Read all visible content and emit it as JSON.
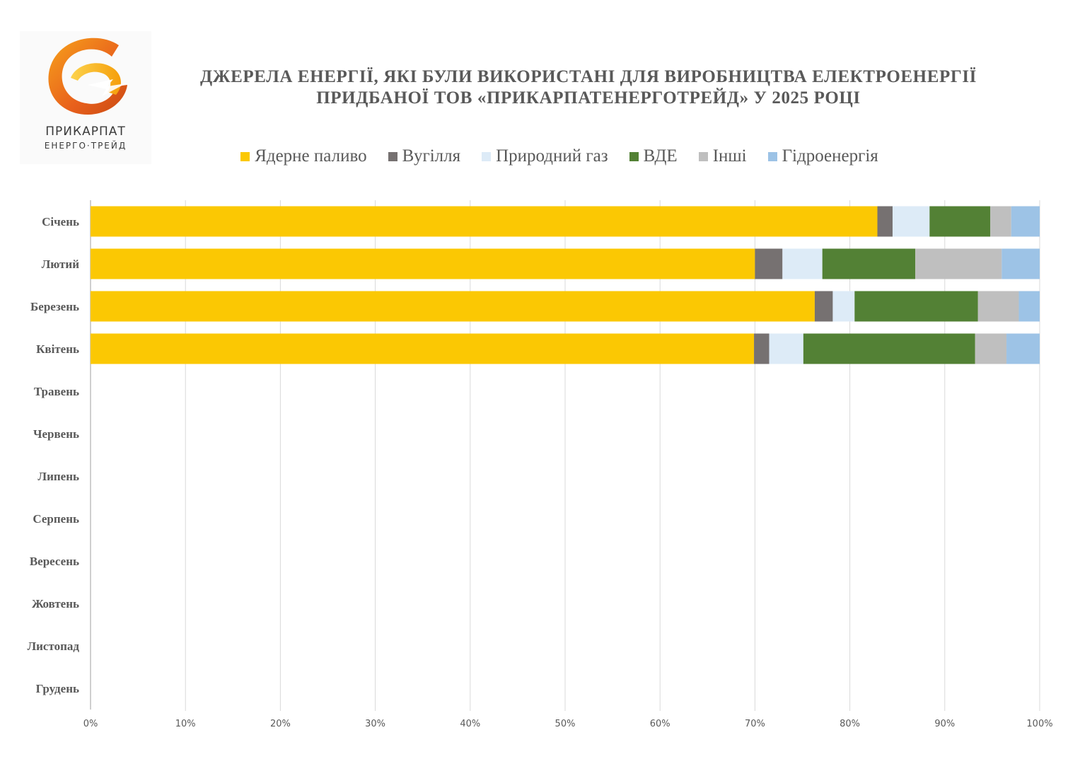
{
  "logo": {
    "line1": "ПРИКАРПАТ",
    "line2": "ЕНЕРГО·ТРЕЙД"
  },
  "chart_data": {
    "type": "bar",
    "orientation": "horizontal",
    "stacked": "percent",
    "title": "ДЖЕРЕЛА ЕНЕРГІЇ, ЯКІ БУЛИ ВИКОРИСТАНІ ДЛЯ ВИРОБНИЦТВА ЕЛЕКТРОЕНЕРГІЇ ПРИДБАНОЇ ТОВ «ПРИКАРПАТЕНЕРГОТРЕЙД» У 2025 РОЦІ",
    "title_lines": [
      "ДЖЕРЕЛА ЕНЕРГІЇ, ЯКІ БУЛИ ВИКОРИСТАНІ ДЛЯ ВИРОБНИЦТВА ЕЛЕКТРОЕНЕРГІЇ",
      "ПРИДБАНОЇ ТОВ «ПРИКАРПАТЕНЕРГОТРЕЙД» У 2025 РОЦІ"
    ],
    "categories": [
      "Січень",
      "Лютий",
      "Березень",
      "Квітень",
      "Травень",
      "Червень",
      "Липень",
      "Серпень",
      "Вересень",
      "Жовтень",
      "Листопад",
      "Грудень"
    ],
    "series": [
      {
        "name": "Ядерне паливо",
        "color": "#fbc803",
        "values": [
          82.9,
          70.0,
          76.3,
          69.9,
          null,
          null,
          null,
          null,
          null,
          null,
          null,
          null
        ]
      },
      {
        "name": "Вугілля",
        "color": "#767171",
        "values": [
          1.6,
          2.9,
          1.9,
          1.6,
          null,
          null,
          null,
          null,
          null,
          null,
          null,
          null
        ]
      },
      {
        "name": "Природний газ",
        "color": "#ddebf7",
        "values": [
          3.9,
          4.2,
          2.3,
          3.6,
          null,
          null,
          null,
          null,
          null,
          null,
          null,
          null
        ]
      },
      {
        "name": "ВДЕ",
        "color": "#538135",
        "values": [
          6.4,
          9.8,
          13.0,
          18.1,
          null,
          null,
          null,
          null,
          null,
          null,
          null,
          null
        ]
      },
      {
        "name": "Інші",
        "color": "#bfbfbf",
        "values": [
          2.2,
          9.1,
          4.3,
          3.3,
          null,
          null,
          null,
          null,
          null,
          null,
          null,
          null
        ]
      },
      {
        "name": "Гідроенергія",
        "color": "#9dc3e6",
        "values": [
          3.0,
          4.0,
          2.2,
          3.5,
          null,
          null,
          null,
          null,
          null,
          null,
          null,
          null
        ]
      }
    ],
    "x_ticks": [
      "0%",
      "10%",
      "20%",
      "30%",
      "40%",
      "50%",
      "60%",
      "70%",
      "80%",
      "90%",
      "100%"
    ],
    "xlim": [
      0,
      100
    ],
    "grid": true,
    "legend_position": "top"
  }
}
